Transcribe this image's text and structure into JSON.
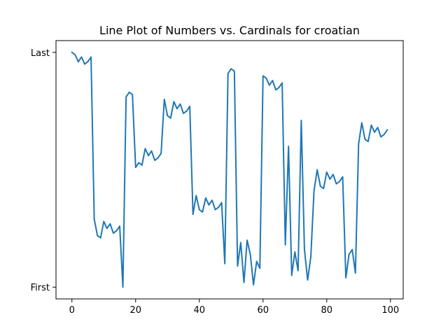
{
  "chart_data": {
    "type": "line",
    "title": "Line Plot of Numbers vs. Cardinals for croatian",
    "xlabel": "",
    "ylabel": "",
    "xlim": [
      -5,
      104
    ],
    "ylim": [
      -0.05,
      1.05
    ],
    "x_ticks": [
      0,
      20,
      40,
      60,
      80,
      100
    ],
    "y_ticks": [
      {
        "value": 0,
        "label": "First"
      },
      {
        "value": 1,
        "label": "Last"
      }
    ],
    "grid": false,
    "line_color": "#1f77b4",
    "series": [
      {
        "x": [
          0,
          1,
          2,
          3,
          4,
          5,
          6,
          7,
          8,
          9,
          10,
          11,
          12,
          13,
          14,
          15,
          16,
          17,
          18,
          19,
          20,
          21,
          22,
          23,
          24,
          25,
          26,
          27,
          28,
          29,
          30,
          31,
          32,
          33,
          34,
          35,
          36,
          37,
          38,
          39,
          40,
          41,
          42,
          43,
          44,
          45,
          46,
          47,
          48,
          49,
          50,
          51,
          52,
          53,
          54,
          55,
          56,
          57,
          58,
          59,
          60,
          61,
          62,
          63,
          64,
          65,
          66,
          67,
          68,
          69,
          70,
          71,
          72,
          73,
          74,
          75,
          76,
          77,
          78,
          79,
          80,
          81,
          82,
          83,
          84,
          85,
          86,
          87,
          88,
          89,
          90,
          91,
          92,
          93,
          94,
          95,
          96,
          97,
          98,
          99
        ],
        "values": [
          1.0,
          0.99,
          0.96,
          0.98,
          0.95,
          0.96,
          0.98,
          0.29,
          0.22,
          0.21,
          0.28,
          0.25,
          0.27,
          0.23,
          0.24,
          0.26,
          0.0,
          0.81,
          0.83,
          0.82,
          0.51,
          0.53,
          0.52,
          0.59,
          0.56,
          0.58,
          0.54,
          0.55,
          0.57,
          0.8,
          0.73,
          0.72,
          0.79,
          0.76,
          0.78,
          0.74,
          0.75,
          0.77,
          0.31,
          0.39,
          0.33,
          0.32,
          0.38,
          0.35,
          0.37,
          0.33,
          0.34,
          0.36,
          0.1,
          0.91,
          0.93,
          0.92,
          0.09,
          0.19,
          0.02,
          0.2,
          0.14,
          0.01,
          0.11,
          0.08,
          0.9,
          0.89,
          0.86,
          0.88,
          0.84,
          0.85,
          0.87,
          0.18,
          0.6,
          0.05,
          0.15,
          0.07,
          0.71,
          0.16,
          0.03,
          0.13,
          0.41,
          0.5,
          0.43,
          0.42,
          0.49,
          0.46,
          0.48,
          0.44,
          0.45,
          0.47,
          0.04,
          0.14,
          0.16,
          0.06,
          0.61,
          0.7,
          0.63,
          0.62,
          0.69,
          0.66,
          0.68,
          0.64,
          0.65,
          0.67
        ]
      }
    ]
  }
}
